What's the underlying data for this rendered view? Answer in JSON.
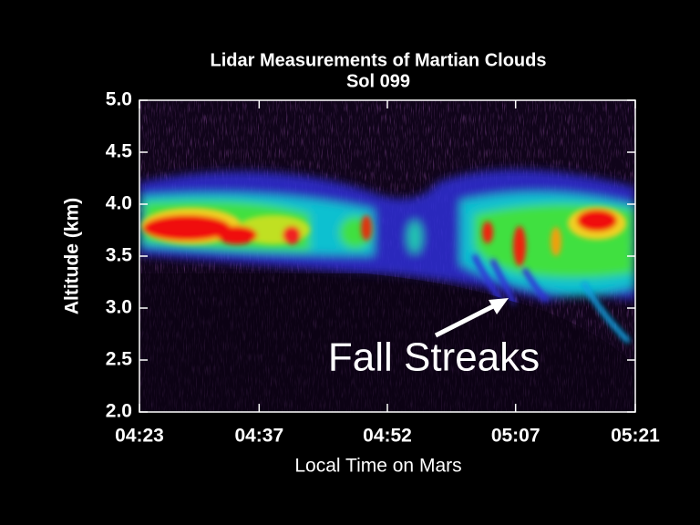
{
  "chart_data": {
    "type": "heatmap",
    "title": "Lidar Measurements of Martian Clouds",
    "subtitle": "Sol 099",
    "xlabel": "Local Time on Mars",
    "ylabel": "Altitude (km)",
    "annotation": "Fall Streaks",
    "xlim": [
      263,
      321
    ],
    "xticks": [
      {
        "value": 263,
        "label": "04:23"
      },
      {
        "value": 277,
        "label": "04:37"
      },
      {
        "value": 292,
        "label": "04:52"
      },
      {
        "value": 307,
        "label": "05:07"
      },
      {
        "value": 321,
        "label": "05:21"
      }
    ],
    "ylim": [
      2,
      5
    ],
    "yticks": [
      {
        "value": 2,
        "label": "2.0"
      },
      2.5,
      {
        "value": 3,
        "label": "3.0"
      },
      3.5,
      {
        "value": 4,
        "label": "4.0"
      },
      4.5,
      {
        "value": 5,
        "label": "5.0"
      }
    ]
  }
}
